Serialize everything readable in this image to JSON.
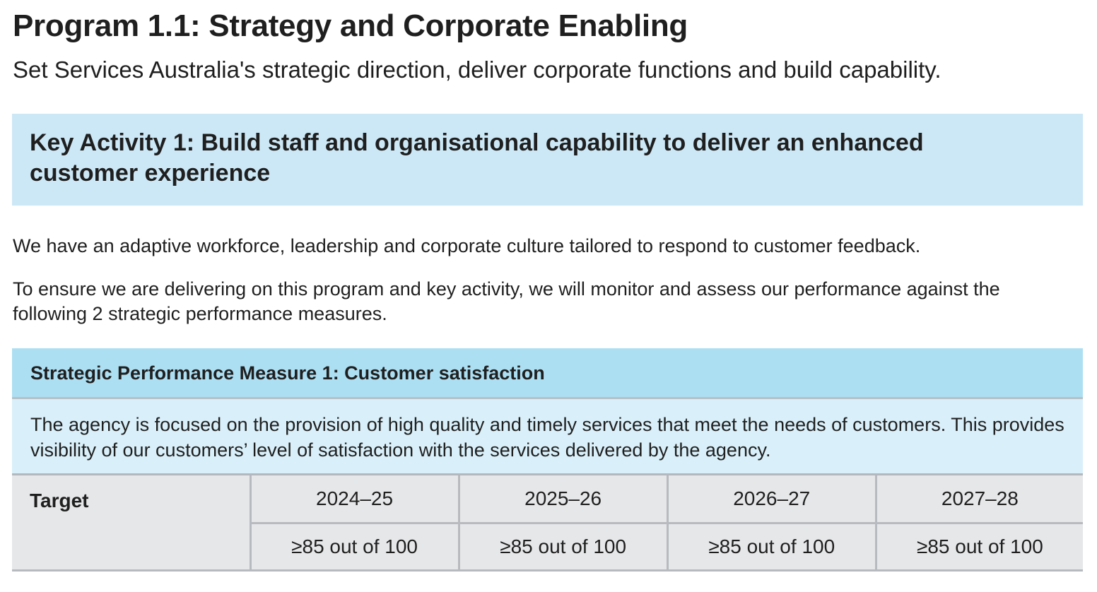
{
  "title": "Program 1.1: Strategy and Corporate Enabling",
  "subtitle": "Set Services Australia's strategic direction, deliver corporate functions and build capability.",
  "key_activity": {
    "heading": "Key Activity 1: Build staff and organisational capability to deliver an enhanced customer experience"
  },
  "paragraphs": {
    "p1": "We have an adaptive workforce, leadership and corporate culture tailored to respond to customer feedback.",
    "p2": "To ensure we are delivering on this program and key activity, we will monitor and assess our performance against the following 2 strategic performance measures."
  },
  "measure": {
    "heading": "Strategic Performance Measure 1: Customer satisfaction",
    "description": "The agency is focused on the provision of high quality and timely services that meet the needs of customers. This provides visibility of our customers’ level of satisfaction with the services delivered by the agency.",
    "target_label": "Target",
    "years": [
      "2024–25",
      "2025–26",
      "2026–27",
      "2027–28"
    ],
    "values": [
      "≥85 out of 100",
      "≥85 out of 100",
      "≥85 out of 100",
      "≥85 out of 100"
    ]
  },
  "colors": {
    "key_activity_bg": "#cce8f6",
    "measure_header_bg": "#addff3",
    "measure_desc_bg": "#d9eff9",
    "table_bg": "#e6e7e9"
  }
}
